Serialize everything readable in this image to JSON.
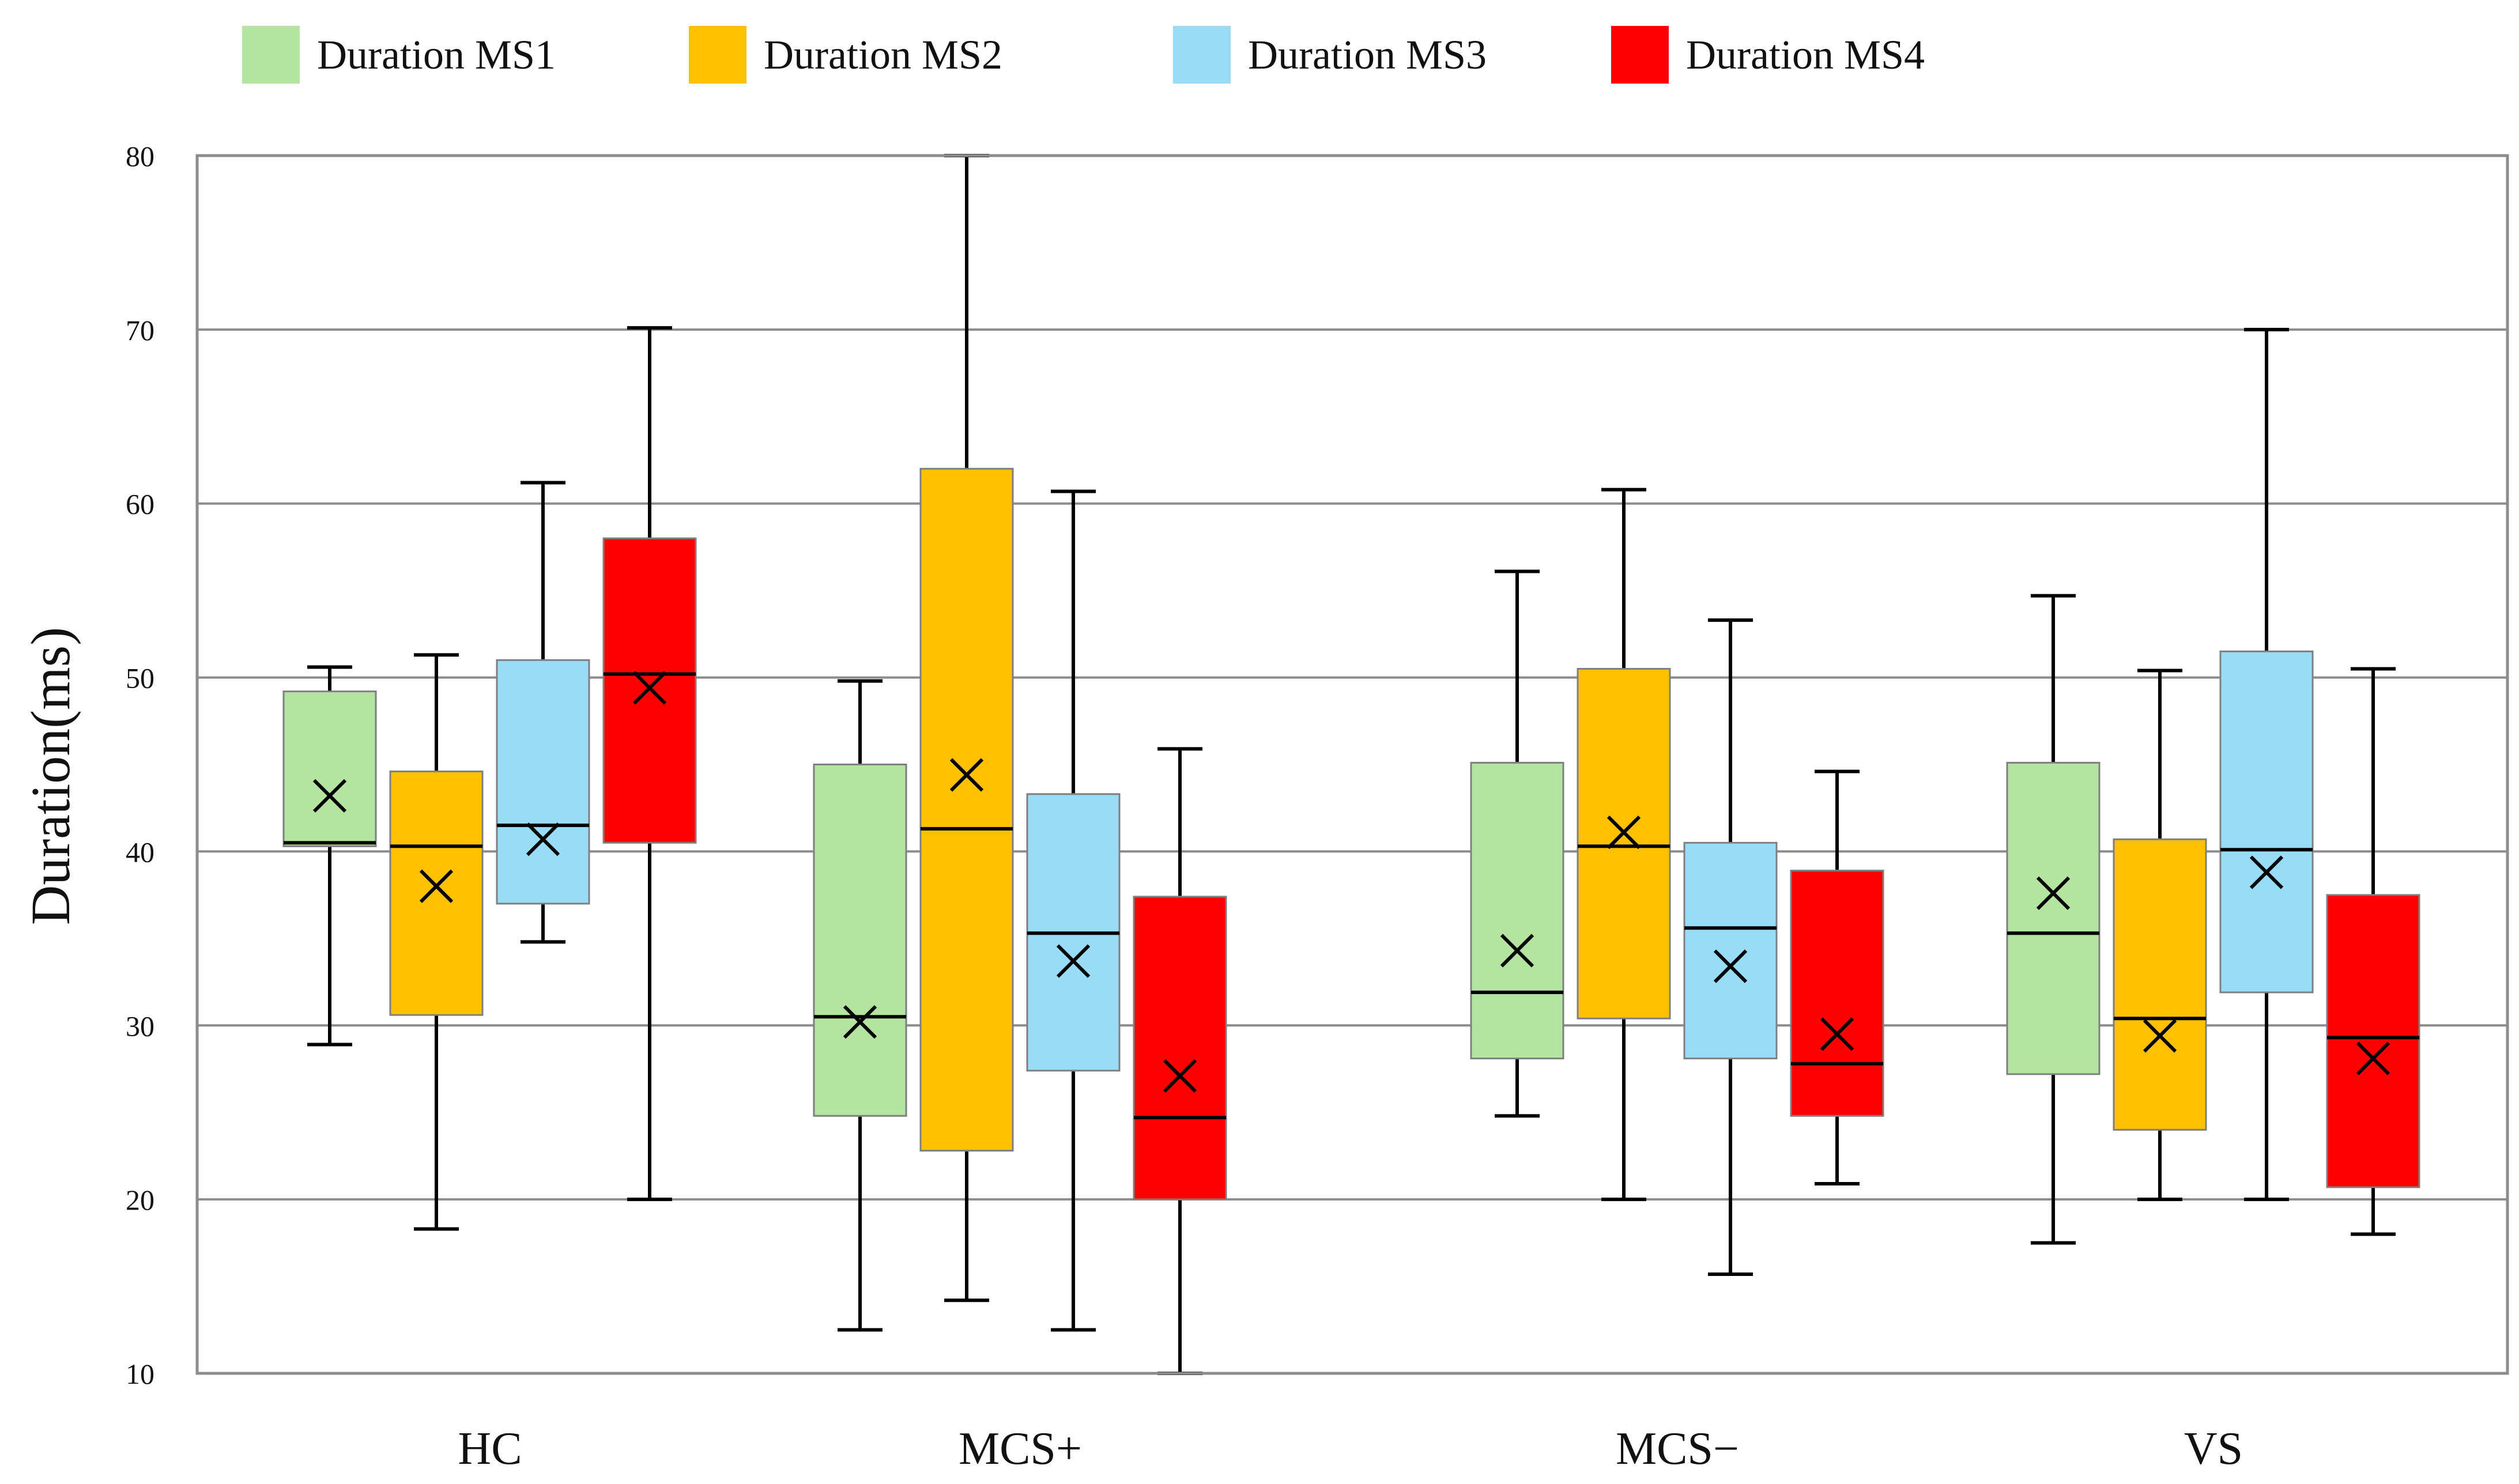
{
  "chart_data": {
    "type": "boxplot",
    "title": "",
    "xlabel": "",
    "ylabel": "Duration(ms)",
    "ylim": [
      10,
      80
    ],
    "yticks": [
      10,
      20,
      30,
      40,
      50,
      60,
      70,
      80
    ],
    "grid": true,
    "legend_position": "top",
    "categories": [
      "HC",
      "MCS+",
      "MCS−",
      "VS"
    ],
    "series": [
      {
        "name": "Duration MS1",
        "color": "#b3e5a1",
        "boxes": [
          {
            "min": 28.9,
            "q1": 40.3,
            "median": 40.5,
            "q3": 49.2,
            "max": 50.6,
            "mean": 43.2
          },
          {
            "min": 12.5,
            "q1": 24.8,
            "median": 30.5,
            "q3": 45.0,
            "max": 49.8,
            "mean": 30.2
          },
          {
            "min": 24.8,
            "q1": 28.1,
            "median": 31.9,
            "q3": 45.1,
            "max": 56.1,
            "mean": 34.3
          },
          {
            "min": 17.5,
            "q1": 27.2,
            "median": 35.3,
            "q3": 45.1,
            "max": 54.7,
            "mean": 37.6
          }
        ]
      },
      {
        "name": "Duration MS2",
        "color": "#ffc000",
        "boxes": [
          {
            "min": 18.3,
            "q1": 30.6,
            "median": 40.3,
            "q3": 44.6,
            "max": 51.3,
            "mean": 38.0
          },
          {
            "min": 14.2,
            "q1": 22.8,
            "median": 41.3,
            "q3": 62.0,
            "max": 80.0,
            "mean": 44.4
          },
          {
            "min": 20.0,
            "q1": 30.4,
            "median": 40.3,
            "q3": 50.5,
            "max": 60.8,
            "mean": 41.1
          },
          {
            "min": 20.0,
            "q1": 24.0,
            "median": 30.4,
            "q3": 40.7,
            "max": 50.4,
            "mean": 29.4
          }
        ]
      },
      {
        "name": "Duration MS3",
        "color": "#99dcf7",
        "boxes": [
          {
            "min": 34.8,
            "q1": 37.0,
            "median": 41.5,
            "q3": 51.0,
            "max": 61.2,
            "mean": 40.7
          },
          {
            "min": 12.5,
            "q1": 27.4,
            "median": 35.3,
            "q3": 43.3,
            "max": 60.7,
            "mean": 33.7
          },
          {
            "min": 15.7,
            "q1": 28.1,
            "median": 35.6,
            "q3": 40.5,
            "max": 53.3,
            "mean": 33.4
          },
          {
            "min": 20.0,
            "q1": 31.9,
            "median": 40.1,
            "q3": 51.5,
            "max": 70.0,
            "mean": 38.8
          }
        ]
      },
      {
        "name": "Duration MS4",
        "color": "#ff0000",
        "boxes": [
          {
            "min": 20.0,
            "q1": 40.5,
            "median": 50.2,
            "q3": 58.0,
            "max": 70.1,
            "mean": 49.4
          },
          {
            "min": 10.0,
            "q1": 20.0,
            "median": 24.7,
            "q3": 37.4,
            "max": 45.9,
            "mean": 27.1
          },
          {
            "min": 20.9,
            "q1": 24.8,
            "median": 27.8,
            "q3": 38.9,
            "max": 44.6,
            "mean": 29.5
          },
          {
            "min": 18.0,
            "q1": 20.7,
            "median": 29.3,
            "q3": 37.5,
            "max": 50.5,
            "mean": 28.1
          }
        ]
      }
    ]
  }
}
